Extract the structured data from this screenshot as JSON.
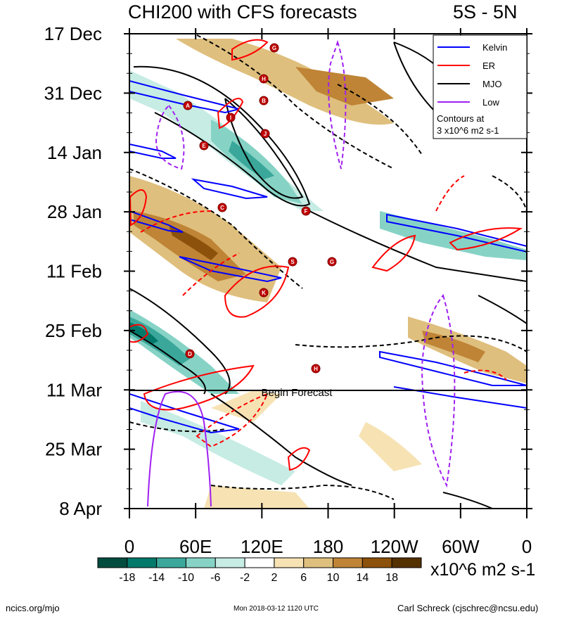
{
  "title": "CHI200 with CFS forecasts",
  "region": "5S - 5N",
  "colors": {
    "kelvin": "#0000ff",
    "er": "#ff0000",
    "mjo": "#000000",
    "low": "#a020f0",
    "marker": "#c00000"
  },
  "chart_data": {
    "type": "heatmap",
    "x_ticks": [
      "0",
      "60E",
      "120E",
      "180",
      "120W",
      "60W",
      "0"
    ],
    "y_ticks": [
      "17 Dec",
      "31 Dec",
      "14 Jan",
      "28 Jan",
      "11 Feb",
      "25 Feb",
      "11 Mar",
      "25 Mar",
      "8 Apr"
    ],
    "forecast_start": "11 Mar",
    "forecast_label": "Begin Forecast",
    "colorbar": {
      "labels": [
        "-18",
        "-14",
        "-10",
        "-6",
        "-2",
        "2",
        "6",
        "10",
        "14",
        "18"
      ],
      "colors": [
        "#004d3f",
        "#00796b",
        "#3aa79a",
        "#86d3c6",
        "#c6ece4",
        "#ffffff",
        "#f6e2b3",
        "#dfbf7d",
        "#bf8436",
        "#8c510a",
        "#553100"
      ],
      "unit": "x10^6 m2 s-1"
    },
    "legend": {
      "items": [
        {
          "name": "Kelvin",
          "key": "kelvin"
        },
        {
          "name": "ER",
          "key": "er"
        },
        {
          "name": "MJO",
          "key": "mjo"
        },
        {
          "name": "Low",
          "key": "low"
        }
      ],
      "note_line1": "Contours at",
      "note_line2": "3 x10^6 m2 s-1",
      "position": "top-right"
    },
    "markers": [
      "G",
      "H",
      "B",
      "A",
      "I",
      "J",
      "E",
      "C",
      "F",
      "S",
      "G",
      "K",
      "D",
      "H"
    ]
  },
  "footer": {
    "left": "ncics.org/mjo",
    "center": "Mon 2018-03-12 1120 UTC",
    "right": "Carl Schreck (cjschrec@ncsu.edu)"
  }
}
